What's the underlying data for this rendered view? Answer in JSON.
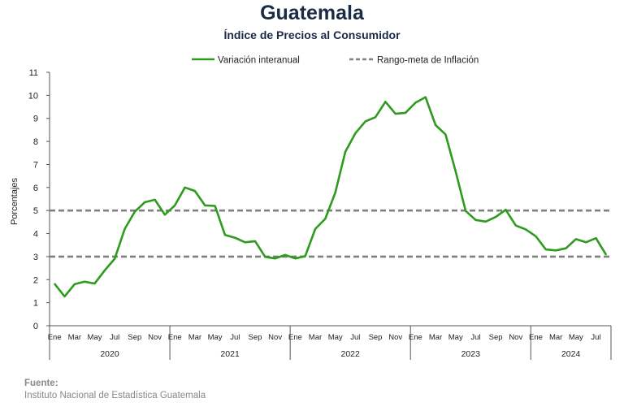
{
  "title": "Guatemala",
  "subtitle": "Índice de Precios al Consumidor",
  "source": {
    "label": "Fuente:",
    "text": "Instituto Nacional de Estadística Guatemala"
  },
  "colors": {
    "series": "#2e9a1e",
    "band": "#808080",
    "title": "#1b2b45"
  },
  "chart_data": {
    "type": "line",
    "ylabel": "Porcentajes",
    "ylim": [
      0,
      11
    ],
    "yticks": [
      0,
      1,
      2,
      3,
      4,
      5,
      6,
      7,
      8,
      9,
      10,
      11
    ],
    "legend_position": "top-center",
    "grid": false,
    "month_labels": [
      "Ene",
      "Mar",
      "May",
      "Jul",
      "Sep",
      "Nov"
    ],
    "years": [
      "2020",
      "2021",
      "2022",
      "2023",
      "2024"
    ],
    "x_start": "2020-01",
    "series": [
      {
        "name": "Variación interanual",
        "values": [
          1.82,
          1.27,
          1.8,
          1.91,
          1.83,
          2.4,
          2.91,
          4.2,
          4.95,
          5.36,
          5.47,
          4.82,
          5.22,
          6.0,
          5.85,
          5.22,
          5.2,
          3.94,
          3.82,
          3.62,
          3.67,
          2.99,
          2.92,
          3.07,
          2.92,
          3.02,
          4.2,
          4.64,
          5.78,
          7.55,
          8.35,
          8.87,
          9.05,
          9.72,
          9.2,
          9.24,
          9.68,
          9.92,
          8.71,
          8.3,
          6.71,
          4.98,
          4.59,
          4.52,
          4.72,
          5.03,
          4.35,
          4.18,
          3.88,
          3.31,
          3.27,
          3.36,
          3.76,
          3.62,
          3.8,
          3.09
        ]
      }
    ],
    "bands": {
      "name": "Rango-meta de Inflación",
      "values": [
        3,
        5
      ]
    }
  }
}
